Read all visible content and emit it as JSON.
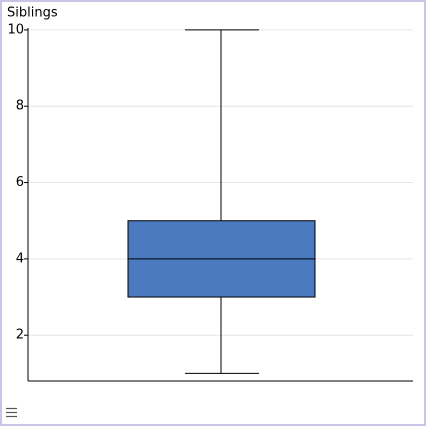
{
  "chart_data": {
    "type": "box",
    "title": "Siblings",
    "min": 1,
    "q1": 3,
    "median": 4,
    "q3": 5,
    "max": 10,
    "color": "#4a7ac0",
    "ylim": [
      0.8,
      10.05
    ],
    "yticks": [
      2,
      4,
      6,
      8,
      10
    ],
    "grid": true
  }
}
